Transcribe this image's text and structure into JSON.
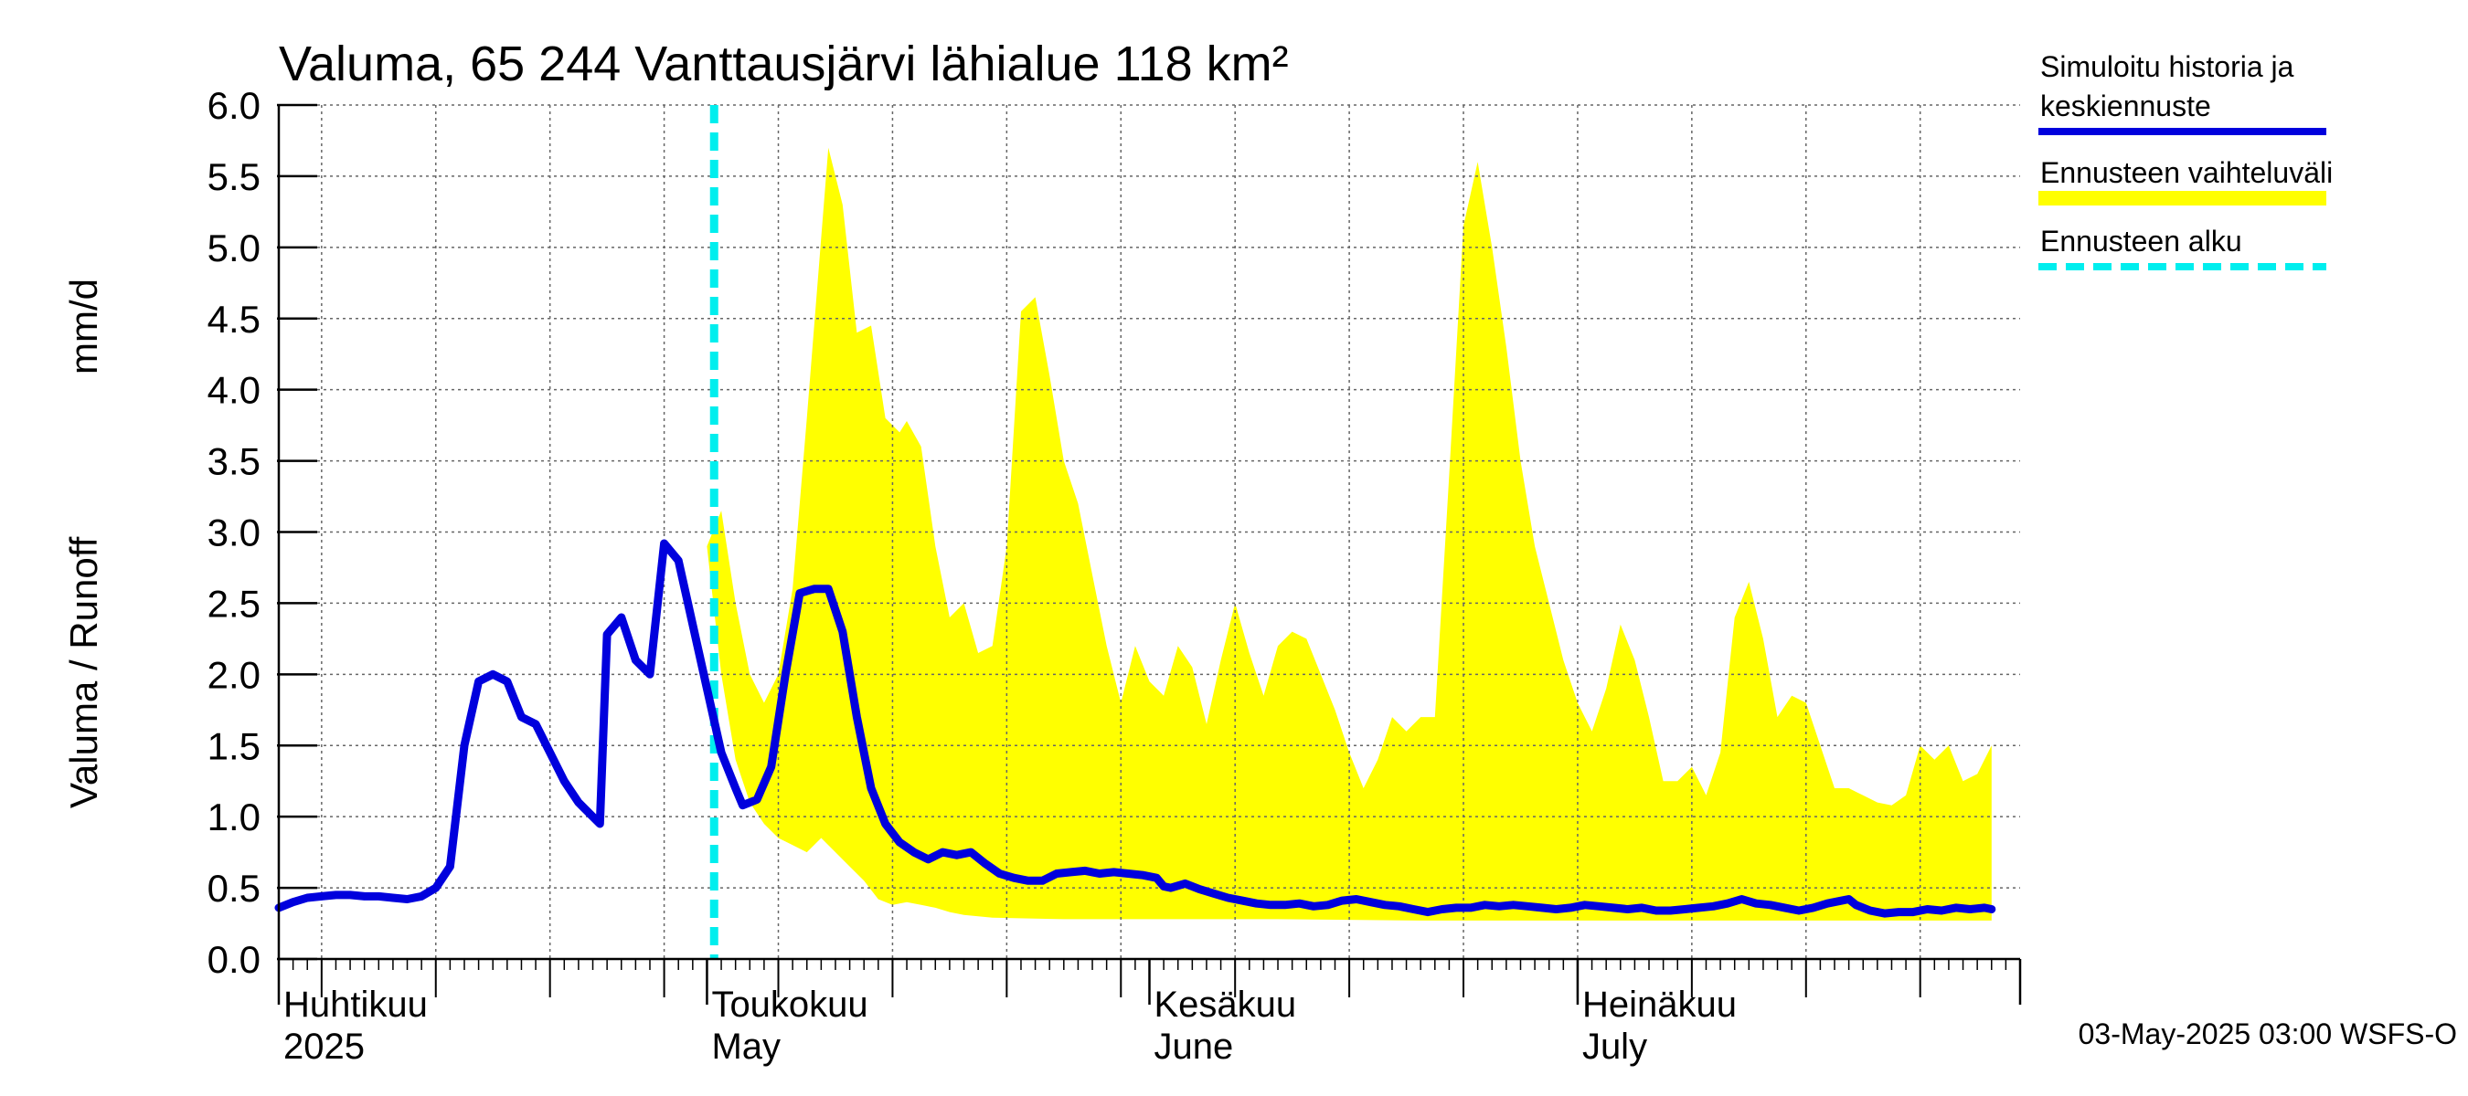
{
  "chart_data": {
    "type": "area",
    "title": "Valuma, 65 244 Vanttausjärvi lähialue 118 km²",
    "ylabel_left": "Valuma / Runoff",
    "ylabel_right": "mm/d",
    "ylim": [
      0,
      6
    ],
    "yticks": [
      "0.0",
      "0.5",
      "1.0",
      "1.5",
      "2.0",
      "2.5",
      "3.0",
      "3.5",
      "4.0",
      "4.5",
      "5.0",
      "5.5",
      "6.0"
    ],
    "x_start_day": 0,
    "x_end_day": 122,
    "month_days": [
      0,
      30,
      61,
      91
    ],
    "months": [
      {
        "fi": "Huhtikuu",
        "en": "2025"
      },
      {
        "fi": "Toukokuu",
        "en": "May"
      },
      {
        "fi": "Kesäkuu",
        "en": "June"
      },
      {
        "fi": "Heinäkuu",
        "en": "July"
      }
    ],
    "forecast_start_day": 30.5,
    "band_upper": [
      [
        30.0,
        2.9
      ],
      [
        31.0,
        3.15
      ],
      [
        32.0,
        2.5
      ],
      [
        33.0,
        2.0
      ],
      [
        34.0,
        1.8
      ],
      [
        35.0,
        2.0
      ],
      [
        36.0,
        2.6
      ],
      [
        37.0,
        3.8
      ],
      [
        38.5,
        5.7
      ],
      [
        39.5,
        5.3
      ],
      [
        40.5,
        4.4
      ],
      [
        41.5,
        4.45
      ],
      [
        42.5,
        3.8
      ],
      [
        43.5,
        3.7
      ],
      [
        44.0,
        3.78
      ],
      [
        45.0,
        3.6
      ],
      [
        46.0,
        2.9
      ],
      [
        47.0,
        2.4
      ],
      [
        48.0,
        2.5
      ],
      [
        49.0,
        2.15
      ],
      [
        50.0,
        2.2
      ],
      [
        51.0,
        2.9
      ],
      [
        52.0,
        4.55
      ],
      [
        53.0,
        4.65
      ],
      [
        54.0,
        4.1
      ],
      [
        55.0,
        3.5
      ],
      [
        56.0,
        3.2
      ],
      [
        57.0,
        2.7
      ],
      [
        58.0,
        2.2
      ],
      [
        59.0,
        1.8
      ],
      [
        60.0,
        2.2
      ],
      [
        61.0,
        1.95
      ],
      [
        62.0,
        1.85
      ],
      [
        63.0,
        2.2
      ],
      [
        64.0,
        2.05
      ],
      [
        65.0,
        1.65
      ],
      [
        66.0,
        2.1
      ],
      [
        67.0,
        2.5
      ],
      [
        68.0,
        2.15
      ],
      [
        69.0,
        1.85
      ],
      [
        70.0,
        2.2
      ],
      [
        71.0,
        2.3
      ],
      [
        72.0,
        2.25
      ],
      [
        73.0,
        2.0
      ],
      [
        74.0,
        1.75
      ],
      [
        75.0,
        1.45
      ],
      [
        76.0,
        1.2
      ],
      [
        77.0,
        1.4
      ],
      [
        78.0,
        1.7
      ],
      [
        79.0,
        1.6
      ],
      [
        80.0,
        1.7
      ],
      [
        81.0,
        1.7
      ],
      [
        82.0,
        3.4
      ],
      [
        83.0,
        5.15
      ],
      [
        84.0,
        5.6
      ],
      [
        85.0,
        5.0
      ],
      [
        86.0,
        4.3
      ],
      [
        87.0,
        3.5
      ],
      [
        88.0,
        2.9
      ],
      [
        89.0,
        2.5
      ],
      [
        90.0,
        2.1
      ],
      [
        91.0,
        1.8
      ],
      [
        92.0,
        1.6
      ],
      [
        93.0,
        1.9
      ],
      [
        94.0,
        2.35
      ],
      [
        95.0,
        2.1
      ],
      [
        96.0,
        1.7
      ],
      [
        97.0,
        1.25
      ],
      [
        98.0,
        1.25
      ],
      [
        99.0,
        1.35
      ],
      [
        100.0,
        1.15
      ],
      [
        101.0,
        1.45
      ],
      [
        102.0,
        2.4
      ],
      [
        103.0,
        2.65
      ],
      [
        104.0,
        2.25
      ],
      [
        105.0,
        1.7
      ],
      [
        106.0,
        1.85
      ],
      [
        107.0,
        1.8
      ],
      [
        108.0,
        1.5
      ],
      [
        109.0,
        1.2
      ],
      [
        110.0,
        1.2
      ],
      [
        111.0,
        1.15
      ],
      [
        112.0,
        1.1
      ],
      [
        113.0,
        1.08
      ],
      [
        114.0,
        1.15
      ],
      [
        115.0,
        1.5
      ],
      [
        116.0,
        1.4
      ],
      [
        117.0,
        1.5
      ],
      [
        118.0,
        1.25
      ],
      [
        119.0,
        1.3
      ],
      [
        120.0,
        1.5
      ]
    ],
    "band_lower": [
      [
        30.0,
        2.9
      ],
      [
        31.0,
        2.0
      ],
      [
        32.0,
        1.4
      ],
      [
        33.0,
        1.1
      ],
      [
        34.0,
        0.95
      ],
      [
        35.0,
        0.85
      ],
      [
        36.0,
        0.8
      ],
      [
        37.0,
        0.75
      ],
      [
        38.0,
        0.85
      ],
      [
        39.0,
        0.75
      ],
      [
        40.0,
        0.65
      ],
      [
        41.0,
        0.55
      ],
      [
        42.0,
        0.42
      ],
      [
        43.0,
        0.38
      ],
      [
        44.0,
        0.4
      ],
      [
        45.0,
        0.38
      ],
      [
        46.0,
        0.36
      ],
      [
        47.0,
        0.33
      ],
      [
        48.0,
        0.31
      ],
      [
        50.0,
        0.29
      ],
      [
        55.0,
        0.28
      ],
      [
        60.0,
        0.28
      ],
      [
        70.0,
        0.28
      ],
      [
        80.0,
        0.27
      ],
      [
        90.0,
        0.27
      ],
      [
        100.0,
        0.27
      ],
      [
        110.0,
        0.27
      ],
      [
        120.0,
        0.27
      ]
    ],
    "series": [
      {
        "name": "Simuloitu historia ja keskiennuste",
        "color": "#0000dd",
        "points": [
          [
            0.0,
            0.36
          ],
          [
            1.0,
            0.4
          ],
          [
            2.0,
            0.43
          ],
          [
            3.0,
            0.44
          ],
          [
            4.0,
            0.45
          ],
          [
            5.0,
            0.45
          ],
          [
            6.0,
            0.44
          ],
          [
            7.0,
            0.44
          ],
          [
            8.0,
            0.43
          ],
          [
            9.0,
            0.42
          ],
          [
            10.0,
            0.44
          ],
          [
            11.0,
            0.5
          ],
          [
            12.0,
            0.65
          ],
          [
            13.0,
            1.5
          ],
          [
            14.0,
            1.95
          ],
          [
            15.0,
            2.0
          ],
          [
            16.0,
            1.95
          ],
          [
            17.0,
            1.7
          ],
          [
            18.0,
            1.65
          ],
          [
            19.0,
            1.45
          ],
          [
            20.0,
            1.25
          ],
          [
            21.0,
            1.1
          ],
          [
            22.0,
            1.0
          ],
          [
            22.5,
            0.95
          ],
          [
            23.0,
            2.28
          ],
          [
            24.0,
            2.4
          ],
          [
            25.0,
            2.1
          ],
          [
            26.0,
            2.0
          ],
          [
            27.0,
            2.92
          ],
          [
            28.0,
            2.8
          ],
          [
            29.0,
            2.35
          ],
          [
            30.0,
            1.9
          ],
          [
            31.0,
            1.45
          ],
          [
            32.0,
            1.2
          ],
          [
            32.5,
            1.08
          ],
          [
            33.5,
            1.12
          ],
          [
            34.5,
            1.35
          ],
          [
            35.5,
            2.0
          ],
          [
            36.5,
            2.57
          ],
          [
            37.5,
            2.6
          ],
          [
            38.5,
            2.6
          ],
          [
            39.5,
            2.3
          ],
          [
            40.5,
            1.7
          ],
          [
            41.5,
            1.2
          ],
          [
            42.5,
            0.95
          ],
          [
            43.5,
            0.82
          ],
          [
            44.5,
            0.75
          ],
          [
            45.5,
            0.7
          ],
          [
            46.5,
            0.75
          ],
          [
            47.5,
            0.73
          ],
          [
            48.5,
            0.75
          ],
          [
            49.5,
            0.67
          ],
          [
            50.5,
            0.6
          ],
          [
            51.5,
            0.57
          ],
          [
            52.5,
            0.55
          ],
          [
            53.5,
            0.55
          ],
          [
            54.5,
            0.6
          ],
          [
            55.5,
            0.61
          ],
          [
            56.5,
            0.62
          ],
          [
            57.5,
            0.6
          ],
          [
            58.5,
            0.61
          ],
          [
            59.5,
            0.6
          ],
          [
            60.5,
            0.59
          ],
          [
            61.5,
            0.57
          ],
          [
            62.0,
            0.51
          ],
          [
            62.5,
            0.5
          ],
          [
            63.5,
            0.53
          ],
          [
            64.5,
            0.49
          ],
          [
            65.5,
            0.46
          ],
          [
            66.5,
            0.43
          ],
          [
            67.5,
            0.41
          ],
          [
            68.5,
            0.39
          ],
          [
            69.5,
            0.38
          ],
          [
            70.5,
            0.38
          ],
          [
            71.5,
            0.39
          ],
          [
            72.5,
            0.37
          ],
          [
            73.5,
            0.38
          ],
          [
            74.5,
            0.41
          ],
          [
            75.5,
            0.42
          ],
          [
            76.5,
            0.4
          ],
          [
            77.5,
            0.38
          ],
          [
            78.5,
            0.37
          ],
          [
            79.5,
            0.35
          ],
          [
            80.5,
            0.33
          ],
          [
            81.5,
            0.35
          ],
          [
            82.5,
            0.36
          ],
          [
            83.5,
            0.36
          ],
          [
            84.5,
            0.38
          ],
          [
            85.5,
            0.37
          ],
          [
            86.5,
            0.38
          ],
          [
            87.5,
            0.37
          ],
          [
            88.5,
            0.36
          ],
          [
            89.5,
            0.35
          ],
          [
            90.5,
            0.36
          ],
          [
            91.5,
            0.38
          ],
          [
            92.5,
            0.37
          ],
          [
            93.5,
            0.36
          ],
          [
            94.5,
            0.35
          ],
          [
            95.5,
            0.36
          ],
          [
            96.5,
            0.34
          ],
          [
            97.5,
            0.34
          ],
          [
            98.5,
            0.35
          ],
          [
            99.5,
            0.36
          ],
          [
            100.5,
            0.37
          ],
          [
            101.5,
            0.39
          ],
          [
            102.5,
            0.42
          ],
          [
            103.5,
            0.39
          ],
          [
            104.5,
            0.38
          ],
          [
            105.5,
            0.36
          ],
          [
            106.5,
            0.34
          ],
          [
            107.5,
            0.36
          ],
          [
            108.5,
            0.39
          ],
          [
            109.5,
            0.41
          ],
          [
            110.0,
            0.42
          ],
          [
            110.5,
            0.38
          ],
          [
            111.5,
            0.34
          ],
          [
            112.5,
            0.32
          ],
          [
            113.5,
            0.33
          ],
          [
            114.5,
            0.33
          ],
          [
            115.5,
            0.35
          ],
          [
            116.5,
            0.34
          ],
          [
            117.5,
            0.36
          ],
          [
            118.5,
            0.35
          ],
          [
            119.5,
            0.36
          ],
          [
            120.0,
            0.35
          ]
        ]
      }
    ],
    "legend": [
      {
        "label": "Simuloitu historia ja\nkeskiennuste",
        "color": "#0000dd"
      },
      {
        "label": "Ennusteen vaihteluväli",
        "color": "#ffff00"
      },
      {
        "label": "Ennusteen alku",
        "color": "#00eeee"
      }
    ],
    "colors": {
      "band": "#ffff00",
      "median": "#0000dd",
      "forecast_line": "#00eeee",
      "grid": "#666666"
    },
    "footer": "03-May-2025 03:00 WSFS-O"
  }
}
